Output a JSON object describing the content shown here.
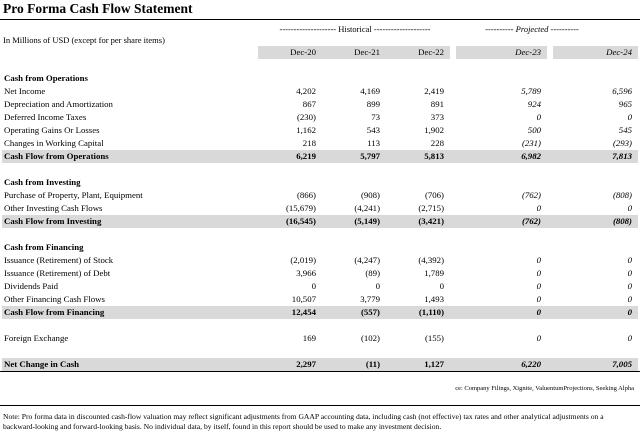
{
  "header": {
    "title": "Pro Forma Cash Flow Statement",
    "group_labels": [
      "-------------------- Historical --------------------",
      "---------- Projected ----------"
    ],
    "units": "In Millions of USD (except for per share items)",
    "columns": [
      "Dec-20",
      "Dec-21",
      "Dec-22",
      "Dec-23",
      "Dec-24"
    ]
  },
  "sections": [
    {
      "title": "Cash from Operations",
      "rows": [
        {
          "label": "Net Income",
          "values": [
            "4,202",
            "4,169",
            "2,419",
            "5,789",
            "6,596"
          ]
        },
        {
          "label": "Depreciation and Amortization",
          "values": [
            "867",
            "899",
            "891",
            "924",
            "965"
          ]
        },
        {
          "label": "Deferred Income Taxes",
          "values": [
            "(230)",
            "73",
            "373",
            "0",
            "0"
          ]
        },
        {
          "label": "Operating Gains Or Losses",
          "values": [
            "1,162",
            "543",
            "1,902",
            "500",
            "545"
          ]
        },
        {
          "label": "Changes in Working Capital",
          "values": [
            "218",
            "113",
            "228",
            "(231)",
            "(293)"
          ]
        }
      ],
      "total": {
        "label": "Cash Flow from Operations",
        "values": [
          "6,219",
          "5,797",
          "5,813",
          "6,982",
          "7,813"
        ]
      }
    },
    {
      "title": "Cash from Investing",
      "rows": [
        {
          "label": "Purchase of Property, Plant, Equipment",
          "values": [
            "(866)",
            "(908)",
            "(706)",
            "(762)",
            "(808)"
          ]
        },
        {
          "label": "Other Investing Cash Flows",
          "values": [
            "(15,679)",
            "(4,241)",
            "(2,715)",
            "0",
            "0"
          ]
        }
      ],
      "total": {
        "label": "Cash Flow from Investing",
        "values": [
          "(16,545)",
          "(5,149)",
          "(3,421)",
          "(762)",
          "(808)"
        ]
      }
    },
    {
      "title": "Cash from Financing",
      "rows": [
        {
          "label": "Issuance (Retirement) of Stock",
          "values": [
            "(2,019)",
            "(4,247)",
            "(4,392)",
            "0",
            "0"
          ]
        },
        {
          "label": "Issuance (Retirement) of Debt",
          "values": [
            "3,966",
            "(89)",
            "1,789",
            "0",
            "0"
          ]
        },
        {
          "label": "Dividends Paid",
          "values": [
            "0",
            "0",
            "0",
            "0",
            "0"
          ]
        },
        {
          "label": "Other Financing Cash Flows",
          "values": [
            "10,507",
            "3,779",
            "1,493",
            "0",
            "0"
          ]
        }
      ],
      "total": {
        "label": "Cash Flow from Financing",
        "values": [
          "12,454",
          "(557)",
          "(1,110)",
          "0",
          "0"
        ]
      }
    }
  ],
  "foreign_exchange": {
    "label": "Foreign Exchange",
    "values": [
      "169",
      "(102)",
      "(155)",
      "0",
      "0"
    ]
  },
  "net_change": {
    "label": "Net Change in Cash",
    "values": [
      "2,297",
      "(11)",
      "1,127",
      "6,220",
      "7,005"
    ]
  },
  "footer": {
    "source": "ce: Company Filings, Xignite, ValuentumProjections, Seeking Alpha",
    "note": "Note: Pro forma data in discounted cash-flow valuation may reflect significant adjustments from GAAP accounting data, including cash (not effective) tax rates and other analytical adjustments on a backward-looking and forward-looking basis. No individual data, by itself, found in this report should be used to make any investment decision."
  }
}
